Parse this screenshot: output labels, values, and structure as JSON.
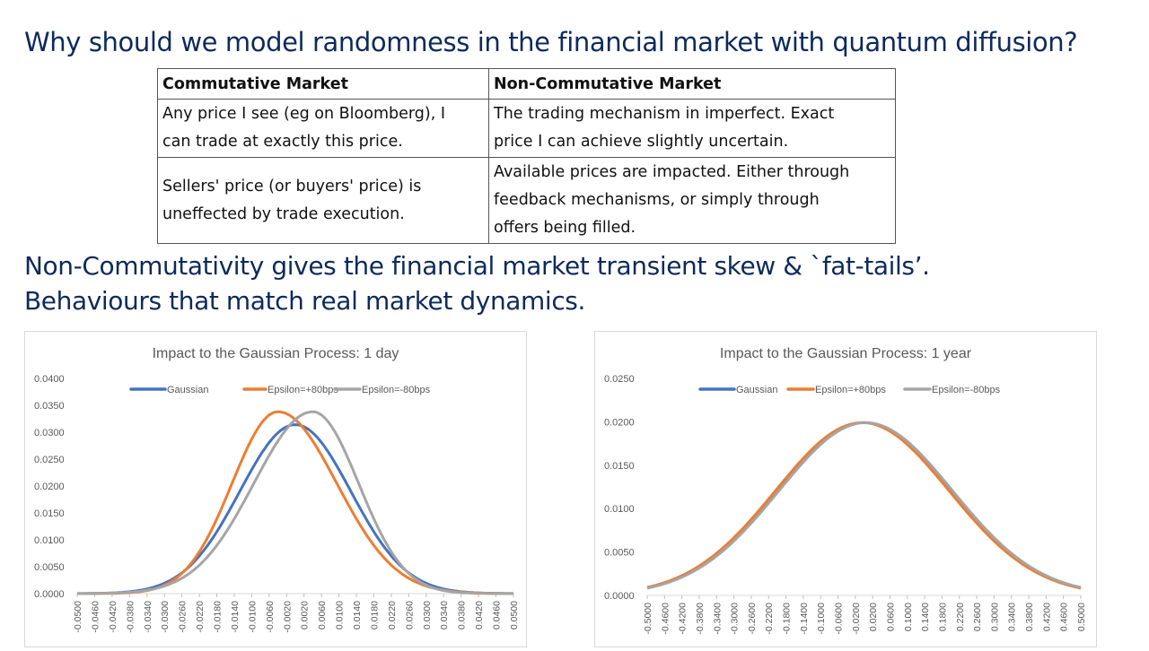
{
  "slide": {
    "title": "Why should we model randomness in the financial market with quantum diffusion?",
    "subtitle_line1": "Non-Commutativity gives the financial market transient skew & `fat-tails’.",
    "subtitle_line2": "Behaviours that match real market dynamics."
  },
  "table": {
    "headers": [
      "Commutative Market",
      "Non-Commutative Market"
    ],
    "rows": [
      [
        [
          "Any price I see (eg on Bloomberg), I",
          "can trade at exactly this price."
        ],
        [
          "The trading mechanism in imperfect. Exact",
          "price I can achieve slightly uncertain."
        ]
      ],
      [
        [
          "Sellers' price (or buyers' price) is",
          "uneffected by trade execution."
        ],
        [
          "Available prices are impacted. Either through",
          "feedback mechanisms, or simply through",
          "offers being filled."
        ]
      ]
    ]
  },
  "colors": {
    "gaussian": "#4472c4",
    "plus": "#ed7d31",
    "minus": "#a5a5a5"
  },
  "chart_data": [
    {
      "type": "line",
      "title": "Impact to the Gaussian Process: 1 day",
      "xlim": [
        -0.05,
        0.05
      ],
      "x_tick_start": -0.05,
      "x_tick_step": 0.004,
      "x_tick_count": 26,
      "ylim": [
        0,
        0.04
      ],
      "y_ticks": [
        "0.0000",
        "0.0050",
        "0.0100",
        "0.0150",
        "0.0200",
        "0.0250",
        "0.0300",
        "0.0350",
        "0.0400"
      ],
      "legend_position": "top",
      "series": [
        {
          "name": "Gaussian",
          "color": "#4472c4",
          "mean": 0.0,
          "sd": 0.0127,
          "peak": 0.0314
        },
        {
          "name": "Epsilon=+80bps",
          "color": "#ed7d31",
          "mean": -0.004,
          "sd": 0.0105,
          "sd_right": 0.0135,
          "peak": 0.0338
        },
        {
          "name": "Epsilon=-80bps",
          "color": "#a5a5a5",
          "mean": 0.004,
          "sd": 0.0135,
          "sd_right": 0.0105,
          "peak": 0.0338
        }
      ]
    },
    {
      "type": "line",
      "title": "Impact to the Gaussian Process: 1 year",
      "xlim": [
        -0.5,
        0.5
      ],
      "x_tick_start": -0.5,
      "x_tick_step": 0.04,
      "x_tick_count": 26,
      "ylim": [
        0,
        0.025
      ],
      "y_ticks": [
        "0.0000",
        "0.0050",
        "0.0100",
        "0.0150",
        "0.0200",
        "0.0250"
      ],
      "legend_position": "top",
      "series": [
        {
          "name": "Gaussian",
          "color": "#4472c4",
          "mean": 0.0,
          "sd": 0.2,
          "peak": 0.0199
        },
        {
          "name": "Epsilon=+80bps",
          "color": "#ed7d31",
          "mean": -0.004,
          "sd": 0.2,
          "peak": 0.0199
        },
        {
          "name": "Epsilon=-80bps",
          "color": "#a5a5a5",
          "mean": 0.004,
          "sd": 0.2,
          "peak": 0.0199
        }
      ]
    }
  ]
}
